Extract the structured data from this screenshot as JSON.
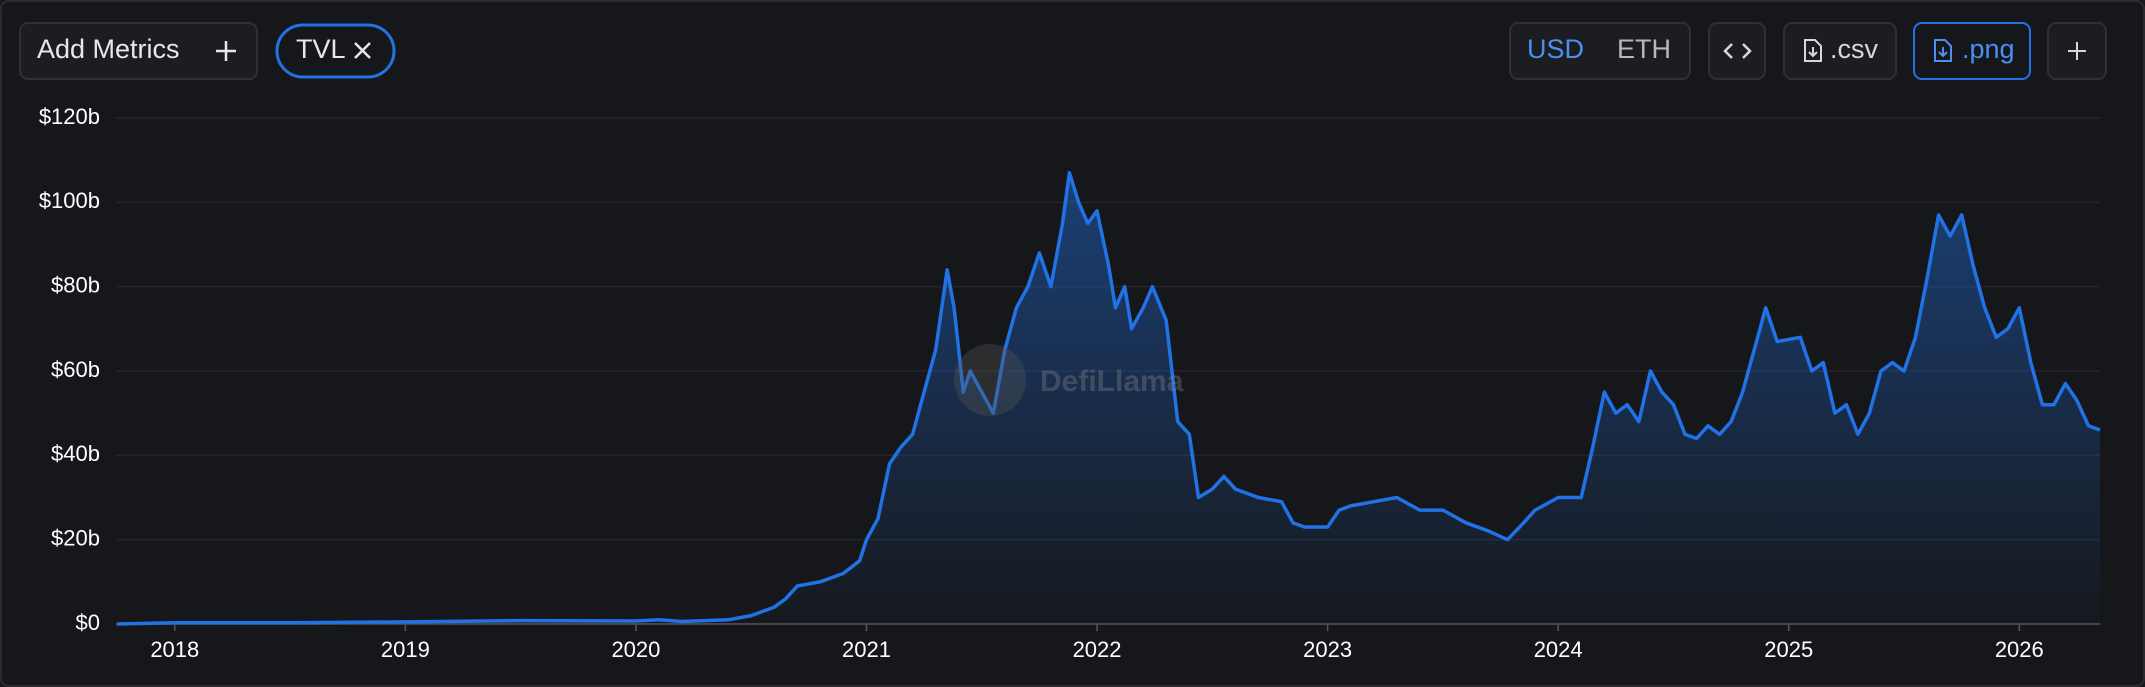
{
  "toolbar": {
    "add_metrics": "Add Metrics",
    "metric": "TVL",
    "currencies": [
      "USD",
      "ETH"
    ],
    "csv": ".csv",
    "png": ".png"
  },
  "watermark": "DefiLlama",
  "chart_data": {
    "type": "area",
    "color": "#2172e5",
    "x": [
      2017.75,
      2018,
      2018.5,
      2019,
      2019.5,
      2020,
      2020.1,
      2020.2,
      2020.4,
      2020.5,
      2020.6,
      2020.65,
      2020.7,
      2020.8,
      2020.9,
      2020.97,
      2021.0,
      2021.05,
      2021.1,
      2021.15,
      2021.2,
      2021.25,
      2021.3,
      2021.35,
      2021.38,
      2021.42,
      2021.45,
      2021.5,
      2021.55,
      2021.6,
      2021.65,
      2021.7,
      2021.75,
      2021.8,
      2021.85,
      2021.88,
      2021.92,
      2021.96,
      2022.0,
      2022.05,
      2022.08,
      2022.12,
      2022.15,
      2022.2,
      2022.24,
      2022.3,
      2022.35,
      2022.4,
      2022.44,
      2022.5,
      2022.55,
      2022.6,
      2022.7,
      2022.8,
      2022.85,
      2022.9,
      2023.0,
      2023.05,
      2023.1,
      2023.2,
      2023.3,
      2023.4,
      2023.5,
      2023.6,
      2023.7,
      2023.78,
      2023.85,
      2023.9,
      2024.0,
      2024.1,
      2024.15,
      2024.2,
      2024.25,
      2024.3,
      2024.35,
      2024.4,
      2024.45,
      2024.5,
      2024.55,
      2024.6,
      2024.65,
      2024.7,
      2024.75,
      2024.8,
      2024.85,
      2024.9,
      2024.95,
      2025.05,
      2025.1,
      2025.15,
      2025.2,
      2025.25,
      2025.3,
      2025.35,
      2025.4,
      2025.45,
      2025.5,
      2025.55,
      2025.6,
      2025.65,
      2025.7,
      2025.75,
      2025.8,
      2025.85,
      2025.9,
      2025.95,
      2026.0,
      2026.05,
      2026.1,
      2026.15,
      2026.2,
      2026.25,
      2026.3,
      2026.35
    ],
    "values": [
      0.01,
      0.3,
      0.3,
      0.5,
      0.8,
      0.7,
      1,
      0.6,
      1,
      2,
      4,
      6,
      9,
      10,
      12,
      15,
      20,
      25,
      38,
      42,
      45,
      55,
      65,
      84,
      75,
      55,
      60,
      55,
      50,
      65,
      75,
      80,
      88,
      80,
      95,
      107,
      100,
      95,
      98,
      85,
      75,
      80,
      70,
      75,
      80,
      72,
      48,
      45,
      30,
      32,
      35,
      32,
      30,
      29,
      24,
      23,
      23,
      27,
      28,
      29,
      30,
      27,
      27,
      24,
      22,
      20,
      24,
      27,
      30,
      30,
      42,
      55,
      50,
      52,
      48,
      60,
      55,
      52,
      45,
      44,
      47,
      45,
      48,
      55,
      65,
      75,
      67,
      68,
      60,
      62,
      50,
      52,
      45,
      50,
      60,
      62,
      60,
      68,
      82,
      97,
      92,
      97,
      85,
      75,
      68,
      70,
      75,
      62,
      52,
      52,
      57,
      53,
      47,
      46
    ],
    "xlim": [
      2017.745,
      2026.35
    ],
    "xticks": [
      2018,
      2019,
      2020,
      2021,
      2022,
      2023,
      2024,
      2025,
      2026
    ],
    "ylim": [
      0,
      120
    ],
    "yticks": [
      {
        "value": 0,
        "label": "$0"
      },
      {
        "value": 20,
        "label": "$20b"
      },
      {
        "value": 40,
        "label": "$40b"
      },
      {
        "value": 60,
        "label": "$60b"
      },
      {
        "value": 80,
        "label": "$80b"
      },
      {
        "value": 100,
        "label": "$100b"
      },
      {
        "value": 120,
        "label": "$120b"
      }
    ],
    "grid": true
  }
}
